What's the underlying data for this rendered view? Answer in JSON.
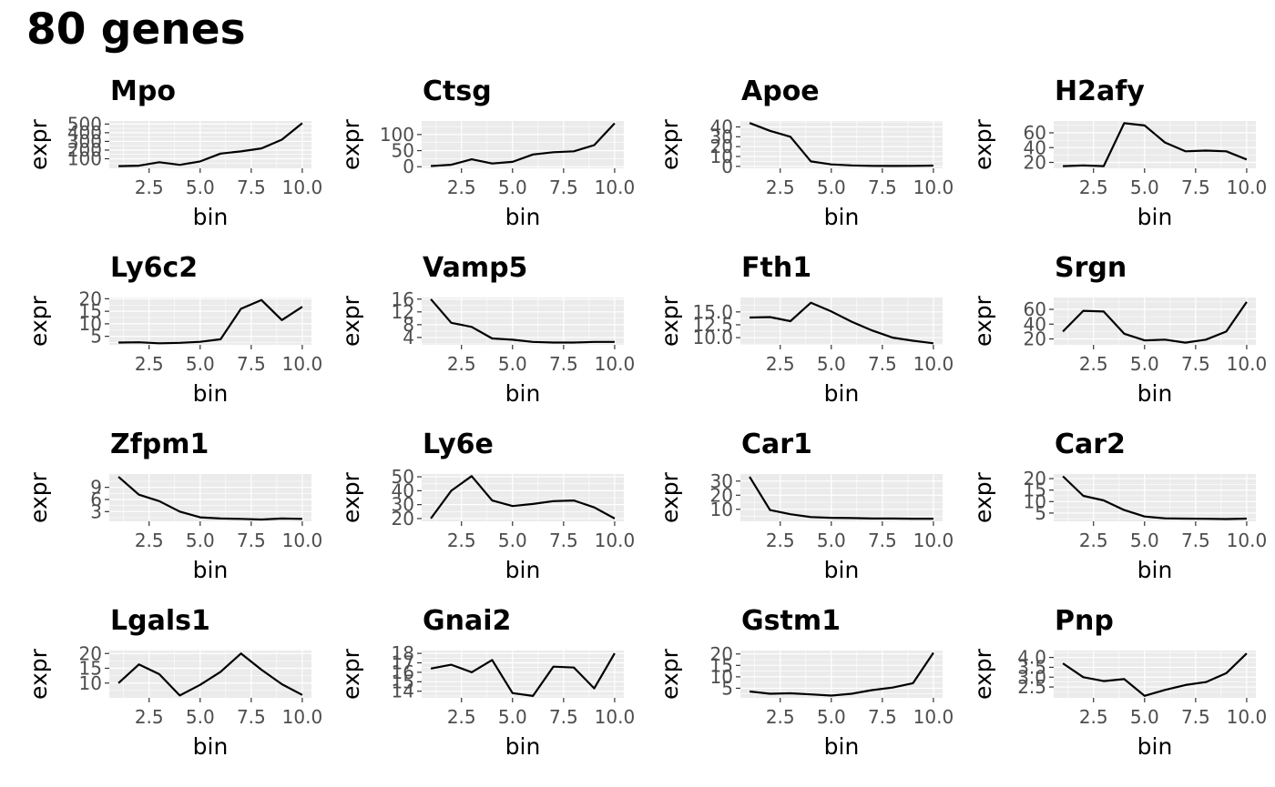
{
  "page": {
    "title": "80 genes"
  },
  "chart_data": [
    {
      "type": "line",
      "title": "Mpo",
      "xlabel": "bin",
      "ylabel": "expr",
      "x": [
        1,
        2,
        3,
        4,
        5,
        6,
        7,
        8,
        9,
        10
      ],
      "values": [
        15,
        20,
        60,
        30,
        70,
        160,
        185,
        220,
        320,
        510
      ],
      "xlim": [
        0.55,
        10.45
      ],
      "ylim": [
        -10,
        535
      ],
      "xticks": [
        2.5,
        5.0,
        7.5,
        10.0
      ],
      "xtick_labels": [
        "2.5",
        "5.0",
        "7.5",
        "10.0"
      ],
      "yticks": [
        100,
        200,
        300,
        400,
        500
      ],
      "ytick_labels": [
        "100",
        "200",
        "300",
        "400",
        "500"
      ],
      "grid": true
    },
    {
      "type": "line",
      "title": "Ctsg",
      "xlabel": "bin",
      "ylabel": "expr",
      "x": [
        1,
        2,
        3,
        4,
        5,
        6,
        7,
        8,
        9,
        10
      ],
      "values": [
        2,
        6,
        23,
        10,
        15,
        38,
        45,
        48,
        67,
        135
      ],
      "xlim": [
        0.55,
        10.45
      ],
      "ylim": [
        -5,
        142
      ],
      "xticks": [
        2.5,
        5.0,
        7.5,
        10.0
      ],
      "xtick_labels": [
        "2.5",
        "5.0",
        "7.5",
        "10.0"
      ],
      "yticks": [
        0,
        50,
        100
      ],
      "ytick_labels": [
        "0",
        "50",
        "100"
      ],
      "grid": true
    },
    {
      "type": "line",
      "title": "Apoe",
      "xlabel": "bin",
      "ylabel": "expr",
      "x": [
        1,
        2,
        3,
        4,
        5,
        6,
        7,
        8,
        9,
        10
      ],
      "values": [
        44,
        36,
        30,
        5,
        2,
        1,
        0.5,
        0.4,
        0.5,
        0.8
      ],
      "xlim": [
        0.55,
        10.45
      ],
      "ylim": [
        -2,
        46
      ],
      "xticks": [
        2.5,
        5.0,
        7.5,
        10.0
      ],
      "xtick_labels": [
        "2.5",
        "5.0",
        "7.5",
        "10.0"
      ],
      "yticks": [
        0,
        10,
        20,
        30,
        40
      ],
      "ytick_labels": [
        "0",
        "10",
        "20",
        "30",
        "40"
      ],
      "grid": true
    },
    {
      "type": "line",
      "title": "H2afy",
      "xlabel": "bin",
      "ylabel": "expr",
      "x": [
        1,
        2,
        3,
        4,
        5,
        6,
        7,
        8,
        9,
        10
      ],
      "values": [
        15,
        16,
        15,
        73,
        70,
        47,
        35,
        36,
        35,
        24
      ],
      "xlim": [
        0.55,
        10.45
      ],
      "ylim": [
        12,
        76
      ],
      "xticks": [
        2.5,
        5.0,
        7.5,
        10.0
      ],
      "xtick_labels": [
        "2.5",
        "5.0",
        "7.5",
        "10.0"
      ],
      "yticks": [
        20,
        40,
        60
      ],
      "ytick_labels": [
        "20",
        "40",
        "60"
      ],
      "grid": true
    },
    {
      "type": "line",
      "title": "Ly6c2",
      "xlabel": "bin",
      "ylabel": "expr",
      "x": [
        1,
        2,
        3,
        4,
        5,
        6,
        7,
        8,
        9,
        10
      ],
      "values": [
        2.5,
        2.6,
        2.2,
        2.4,
        2.8,
        3.8,
        16,
        19.5,
        11.5,
        16.8
      ],
      "xlim": [
        0.55,
        10.45
      ],
      "ylim": [
        1.6,
        20.5
      ],
      "xticks": [
        2.5,
        5.0,
        7.5,
        10.0
      ],
      "xtick_labels": [
        "2.5",
        "5.0",
        "7.5",
        "10.0"
      ],
      "yticks": [
        5,
        10,
        15,
        20
      ],
      "ytick_labels": [
        "5",
        "10",
        "15",
        "20"
      ],
      "grid": true
    },
    {
      "type": "line",
      "title": "Vamp5",
      "xlabel": "bin",
      "ylabel": "expr",
      "x": [
        1,
        2,
        3,
        4,
        5,
        6,
        7,
        8,
        9,
        10
      ],
      "values": [
        16,
        8.6,
        7.3,
        3.7,
        3.3,
        2.6,
        2.4,
        2.4,
        2.6,
        2.6
      ],
      "xlim": [
        0.55,
        10.45
      ],
      "ylim": [
        1.7,
        16.5
      ],
      "xticks": [
        2.5,
        5.0,
        7.5,
        10.0
      ],
      "xtick_labels": [
        "2.5",
        "5.0",
        "7.5",
        "10.0"
      ],
      "yticks": [
        4,
        8,
        12,
        16
      ],
      "ytick_labels": [
        "4",
        "8",
        "12",
        "16"
      ],
      "grid": true
    },
    {
      "type": "line",
      "title": "Fth1",
      "xlabel": "bin",
      "ylabel": "expr",
      "x": [
        1,
        2,
        3,
        4,
        5,
        6,
        7,
        8,
        9,
        10
      ],
      "values": [
        13.9,
        14,
        13.2,
        16.8,
        15.1,
        13.1,
        11.4,
        10,
        9.4,
        8.9
      ],
      "xlim": [
        0.55,
        10.45
      ],
      "ylim": [
        8.6,
        17.8
      ],
      "xticks": [
        2.5,
        5.0,
        7.5,
        10.0
      ],
      "xtick_labels": [
        "2.5",
        "5.0",
        "7.5",
        "10.0"
      ],
      "yticks": [
        10.0,
        12.5,
        15.0
      ],
      "ytick_labels": [
        "10.0",
        "12.5",
        "15.0"
      ],
      "grid": true
    },
    {
      "type": "line",
      "title": "Srgn",
      "xlabel": "bin",
      "ylabel": "expr",
      "x": [
        1,
        2,
        3,
        4,
        5,
        6,
        7,
        8,
        9,
        10
      ],
      "values": [
        30,
        58,
        57,
        27,
        18,
        19,
        15,
        19,
        30,
        70
      ],
      "xlim": [
        0.55,
        10.45
      ],
      "ylim": [
        12,
        76
      ],
      "xticks": [
        2.5,
        5.0,
        7.5,
        10.0
      ],
      "xtick_labels": [
        "2.5",
        "5.0",
        "7.5",
        "10.0"
      ],
      "yticks": [
        20,
        40,
        60
      ],
      "ytick_labels": [
        "20",
        "40",
        "60"
      ],
      "grid": true
    },
    {
      "type": "line",
      "title": "Zfpm1",
      "xlabel": "bin",
      "ylabel": "expr",
      "x": [
        1,
        2,
        3,
        4,
        5,
        6,
        7,
        8,
        9,
        10
      ],
      "values": [
        11.6,
        7.2,
        5.6,
        3,
        1.6,
        1.3,
        1.2,
        1.05,
        1.3,
        1.2
      ],
      "xlim": [
        0.55,
        10.45
      ],
      "ylim": [
        0.6,
        12.3
      ],
      "xticks": [
        2.5,
        5.0,
        7.5,
        10.0
      ],
      "xtick_labels": [
        "2.5",
        "5.0",
        "7.5",
        "10.0"
      ],
      "yticks": [
        3,
        6,
        9
      ],
      "ytick_labels": [
        "3",
        "6",
        "9"
      ],
      "grid": true
    },
    {
      "type": "line",
      "title": "Ly6e",
      "xlabel": "bin",
      "ylabel": "expr",
      "x": [
        1,
        2,
        3,
        4,
        5,
        6,
        7,
        8,
        9,
        10
      ],
      "values": [
        20,
        40,
        50.5,
        33,
        29,
        30.5,
        32.5,
        33,
        28,
        20
      ],
      "xlim": [
        0.55,
        10.45
      ],
      "ylim": [
        18,
        52
      ],
      "xticks": [
        2.5,
        5.0,
        7.5,
        10.0
      ],
      "xtick_labels": [
        "2.5",
        "5.0",
        "7.5",
        "10.0"
      ],
      "yticks": [
        20,
        30,
        40,
        50
      ],
      "ytick_labels": [
        "20",
        "30",
        "40",
        "50"
      ],
      "grid": true
    },
    {
      "type": "line",
      "title": "Car1",
      "xlabel": "bin",
      "ylabel": "expr",
      "x": [
        1,
        2,
        3,
        4,
        5,
        6,
        7,
        8,
        9,
        10
      ],
      "values": [
        33,
        9.5,
        6.5,
        4.5,
        4,
        3.8,
        3.5,
        3.5,
        3.4,
        3.4
      ],
      "xlim": [
        0.55,
        10.45
      ],
      "ylim": [
        1.5,
        35
      ],
      "xticks": [
        2.5,
        5.0,
        7.5,
        10.0
      ],
      "xtick_labels": [
        "2.5",
        "5.0",
        "7.5",
        "10.0"
      ],
      "yticks": [
        10,
        20,
        30
      ],
      "ytick_labels": [
        "10",
        "20",
        "30"
      ],
      "grid": true
    },
    {
      "type": "line",
      "title": "Car2",
      "xlabel": "bin",
      "ylabel": "expr",
      "x": [
        1,
        2,
        3,
        4,
        5,
        6,
        7,
        8,
        9,
        10
      ],
      "values": [
        21,
        12.5,
        10.5,
        6.3,
        3.5,
        2.7,
        2.6,
        2.5,
        2.4,
        2.6
      ],
      "xlim": [
        0.55,
        10.45
      ],
      "ylim": [
        1.4,
        22
      ],
      "xticks": [
        2.5,
        5.0,
        7.5,
        10.0
      ],
      "xtick_labels": [
        "2.5",
        "5.0",
        "7.5",
        "10.0"
      ],
      "yticks": [
        5,
        10,
        15,
        20
      ],
      "ytick_labels": [
        "5",
        "10",
        "15",
        "20"
      ],
      "grid": true
    },
    {
      "type": "line",
      "title": "Lgals1",
      "xlabel": "bin",
      "ylabel": "expr",
      "x": [
        1,
        2,
        3,
        4,
        5,
        6,
        7,
        8,
        9,
        10
      ],
      "values": [
        10,
        16.3,
        13,
        5.8,
        9.4,
        13.8,
        20,
        14.5,
        9.6,
        6
      ],
      "xlim": [
        0.55,
        10.45
      ],
      "ylim": [
        5,
        21
      ],
      "xticks": [
        2.5,
        5.0,
        7.5,
        10.0
      ],
      "xtick_labels": [
        "2.5",
        "5.0",
        "7.5",
        "10.0"
      ],
      "yticks": [
        10,
        15,
        20
      ],
      "ytick_labels": [
        "10",
        "15",
        "20"
      ],
      "grid": true
    },
    {
      "type": "line",
      "title": "Gnai2",
      "xlabel": "bin",
      "ylabel": "expr",
      "x": [
        1,
        2,
        3,
        4,
        5,
        6,
        7,
        8,
        9,
        10
      ],
      "values": [
        16.4,
        16.8,
        16,
        17.3,
        13.8,
        13.5,
        16.6,
        16.5,
        14.3,
        18
      ],
      "xlim": [
        0.55,
        10.45
      ],
      "ylim": [
        13.3,
        18.3
      ],
      "xticks": [
        2.5,
        5.0,
        7.5,
        10.0
      ],
      "xtick_labels": [
        "2.5",
        "5.0",
        "7.5",
        "10.0"
      ],
      "yticks": [
        14,
        15,
        16,
        17,
        18
      ],
      "ytick_labels": [
        "14",
        "15",
        "16",
        "17",
        "18"
      ],
      "grid": true
    },
    {
      "type": "line",
      "title": "Gstm1",
      "xlabel": "bin",
      "ylabel": "expr",
      "x": [
        1,
        2,
        3,
        4,
        5,
        6,
        7,
        8,
        9,
        10
      ],
      "values": [
        3.6,
        2.6,
        2.8,
        2.3,
        1.8,
        2.6,
        4.2,
        5.3,
        7.2,
        20.5
      ],
      "xlim": [
        0.55,
        10.45
      ],
      "ylim": [
        0.8,
        21.5
      ],
      "xticks": [
        2.5,
        5.0,
        7.5,
        10.0
      ],
      "xtick_labels": [
        "2.5",
        "5.0",
        "7.5",
        "10.0"
      ],
      "yticks": [
        5,
        10,
        15,
        20
      ],
      "ytick_labels": [
        "5",
        "10",
        "15",
        "20"
      ],
      "grid": true
    },
    {
      "type": "line",
      "title": "Pnp",
      "xlabel": "bin",
      "ylabel": "expr",
      "x": [
        1,
        2,
        3,
        4,
        5,
        6,
        7,
        8,
        9,
        10
      ],
      "values": [
        3.7,
        3,
        2.8,
        2.9,
        2.05,
        2.35,
        2.6,
        2.75,
        3.2,
        4.2
      ],
      "xlim": [
        0.55,
        10.45
      ],
      "ylim": [
        1.95,
        4.35
      ],
      "xticks": [
        2.5,
        5.0,
        7.5,
        10.0
      ],
      "xtick_labels": [
        "2.5",
        "5.0",
        "7.5",
        "10.0"
      ],
      "yticks": [
        2.5,
        3.0,
        3.5,
        4.0
      ],
      "ytick_labels": [
        "2.5",
        "3.0",
        "3.5",
        "4.0"
      ],
      "grid": true
    }
  ]
}
